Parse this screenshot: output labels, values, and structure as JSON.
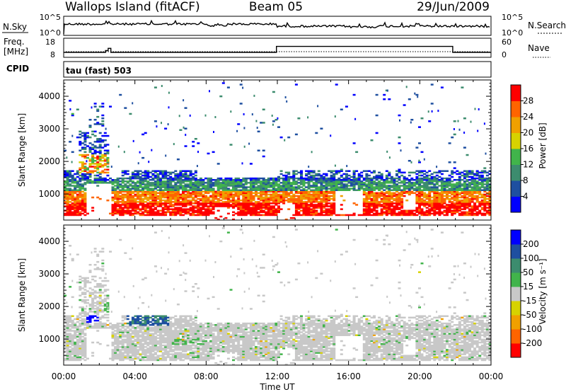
{
  "header": {
    "station": "Wallops Island (fitACF)",
    "beam": "Beam 05",
    "date": "29/Jun/2009"
  },
  "noise_panel": {
    "left_label": "N.Sky",
    "right_label": "N.Search",
    "left_ticks": [
      "10^5",
      "10^0"
    ],
    "right_ticks": [
      "10^5",
      "10^0"
    ]
  },
  "freq_panel": {
    "left_label_1": "Freq.",
    "left_label_2": "[MHz]",
    "right_label": "Nave",
    "left_ticks": [
      "18",
      "8"
    ],
    "right_ticks": [
      "60",
      "0"
    ]
  },
  "cpid": {
    "label": "CPID",
    "value": "tau (fast) 503"
  },
  "colors": {
    "power_scale": [
      "#0000ff",
      "#1e4fa0",
      "#3c8c6e",
      "#41b44b",
      "#d7d200",
      "#f0a000",
      "#ff6400",
      "#ff0000"
    ],
    "velocity_scale": [
      "#0000ff",
      "#1e4fa0",
      "#3c8c6e",
      "#41b44b",
      "#c8c8c8",
      "#d7d200",
      "#f0a000",
      "#ff6400",
      "#ff0000"
    ]
  },
  "chart_data": [
    {
      "type": "heatmap",
      "name": "power",
      "ylabel": "Slant Range [km]",
      "ylim": [
        200,
        4500
      ],
      "y_ticks": [
        "1000",
        "2000",
        "3000",
        "4000"
      ],
      "x_range_hours": [
        0,
        24
      ],
      "x_ticks": [
        "00:00",
        "04:00",
        "08:00",
        "12:00",
        "16:00",
        "20:00",
        "00:00"
      ],
      "colorbar": {
        "label": "Power [dB]",
        "ticks": [
          "4",
          "8",
          "12",
          "16",
          "20",
          "24",
          "28"
        ],
        "range": [
          0,
          32
        ]
      }
    },
    {
      "type": "heatmap",
      "name": "velocity",
      "ylabel": "Slant Range [km]",
      "xlabel": "Time UT",
      "ylim": [
        200,
        4500
      ],
      "y_ticks": [
        "1000",
        "2000",
        "3000",
        "4000"
      ],
      "x_range_hours": [
        0,
        24
      ],
      "x_ticks": [
        "00:00",
        "04:00",
        "08:00",
        "12:00",
        "16:00",
        "20:00",
        "00:00"
      ],
      "colorbar": {
        "label": "Velocity [m s⁻¹]",
        "ticks": [
          "200",
          "100",
          "50",
          "15",
          "-15",
          "-50",
          "-100",
          "-200"
        ]
      }
    },
    {
      "type": "line",
      "name": "frequency",
      "ylabel": "Freq. [MHz]",
      "ylim": [
        8,
        18
      ],
      "series": [
        {
          "x_hours": [
            0.0,
            2.35,
            2.35,
            2.5,
            2.5,
            2.65,
            2.65,
            11.95,
            11.95,
            21.85,
            21.85,
            24.0
          ],
          "values": [
            10.6,
            10.6,
            11.5,
            11.5,
            12.7,
            12.7,
            10.6,
            10.6,
            13.7,
            13.7,
            10.6,
            10.6
          ]
        }
      ]
    }
  ]
}
